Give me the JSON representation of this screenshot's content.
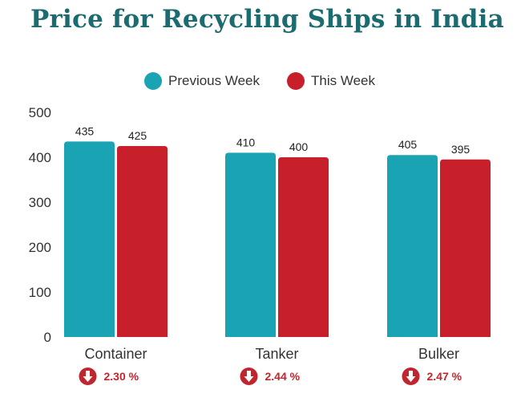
{
  "chart_data": {
    "type": "bar",
    "title": "Price for Recycling Ships in India",
    "xlabel": "",
    "ylabel": "",
    "categories": [
      "Container",
      "Tanker",
      "Bulker"
    ],
    "series": [
      {
        "name": "Previous Week",
        "values": [
          435,
          410,
          405
        ],
        "color": "#1aa3b3"
      },
      {
        "name": "This Week",
        "values": [
          425,
          400,
          395
        ],
        "color": "#c8202a"
      }
    ],
    "changes": [
      "2.30 %",
      "2.44 %",
      "2.47 %"
    ],
    "change_direction": "down",
    "change_color": "#c0262d",
    "ylim": [
      0,
      500
    ],
    "yticks": [
      0,
      100,
      200,
      300,
      400,
      500
    ],
    "grid": false,
    "legend_position": "top-center"
  }
}
